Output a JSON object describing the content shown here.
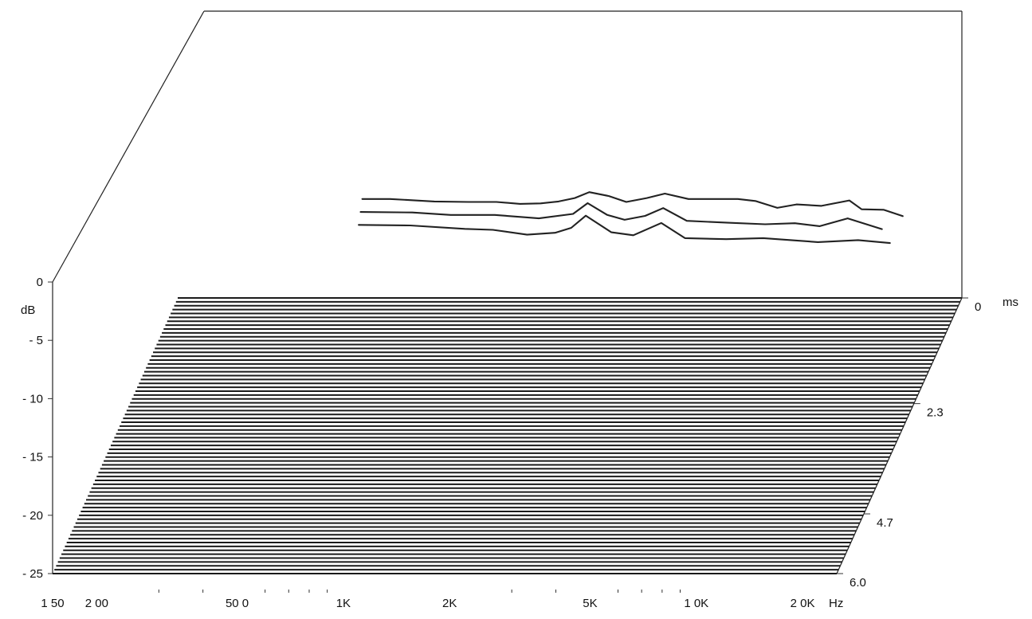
{
  "chart_data": {
    "type": "waterfall",
    "xlabel": "Hz",
    "x_scale": "log",
    "xlim": [
      150,
      30000
    ],
    "x_tick_labels": [
      {
        "value": 150,
        "label": "1 50"
      },
      {
        "value": 200,
        "label": "2 00"
      },
      {
        "value": 500,
        "label": "50 0"
      },
      {
        "value": 1000,
        "label": "1K"
      },
      {
        "value": 2000,
        "label": "2K"
      },
      {
        "value": 5000,
        "label": "5K"
      },
      {
        "value": 10000,
        "label": "1 0K"
      },
      {
        "value": 20000,
        "label": "2 0K"
      }
    ],
    "ylabel": "dB",
    "ylim": [
      -25,
      0
    ],
    "y_tick_labels": [
      {
        "value": 0,
        "label": "0"
      },
      {
        "value": -5,
        "label": "- 5"
      },
      {
        "value": -10,
        "label": "- 10"
      },
      {
        "value": -15,
        "label": "- 15"
      },
      {
        "value": -20,
        "label": "- 20"
      },
      {
        "value": -25,
        "label": "- 25"
      }
    ],
    "zlabel": "ms",
    "zlim": [
      0,
      6.0
    ],
    "z_tick_labels": [
      {
        "value": 0,
        "label": "0"
      },
      {
        "value": 2.3,
        "label": "2.3"
      },
      {
        "value": 4.7,
        "label": "4.7"
      },
      {
        "value": 6.0,
        "label": "6.0"
      }
    ],
    "slice_count": 72,
    "slices": [
      {
        "time_ms": 0.0,
        "response": [
          [
            500,
            -4.8
          ],
          [
            600,
            -4.8
          ],
          [
            800,
            -5.3
          ],
          [
            1000,
            -5.4
          ],
          [
            1200,
            -5.4
          ],
          [
            1400,
            -5.8
          ],
          [
            1600,
            -5.7
          ],
          [
            1800,
            -5.3
          ],
          [
            2000,
            -4.6
          ],
          [
            2200,
            -3.4
          ],
          [
            2500,
            -4.2
          ],
          [
            2800,
            -5.4
          ],
          [
            3200,
            -4.6
          ],
          [
            3600,
            -3.7
          ],
          [
            4200,
            -4.8
          ],
          [
            5000,
            -4.8
          ],
          [
            5800,
            -4.8
          ],
          [
            6500,
            -5.2
          ],
          [
            7500,
            -6.6
          ],
          [
            8500,
            -5.9
          ],
          [
            10000,
            -6.2
          ],
          [
            12000,
            -5.1
          ],
          [
            13000,
            -6.9
          ],
          [
            15000,
            -7.0
          ],
          [
            17000,
            -8.3
          ]
        ]
      },
      {
        "time_ms": 0.08,
        "response": [
          [
            500,
            -6.7
          ],
          [
            700,
            -6.8
          ],
          [
            900,
            -7.3
          ],
          [
            1200,
            -7.3
          ],
          [
            1600,
            -8.0
          ],
          [
            2000,
            -7.1
          ],
          [
            2200,
            -4.9
          ],
          [
            2500,
            -7.3
          ],
          [
            2800,
            -8.3
          ],
          [
            3200,
            -7.5
          ],
          [
            3600,
            -5.9
          ],
          [
            4200,
            -8.5
          ],
          [
            5500,
            -8.9
          ],
          [
            7000,
            -9.2
          ],
          [
            8500,
            -9.0
          ],
          [
            10000,
            -9.6
          ],
          [
            12000,
            -8.0
          ],
          [
            15000,
            -10.2
          ]
        ]
      },
      {
        "time_ms": 0.17,
        "response": [
          [
            500,
            -8.5
          ],
          [
            700,
            -8.6
          ],
          [
            1000,
            -9.3
          ],
          [
            1200,
            -9.5
          ],
          [
            1500,
            -10.5
          ],
          [
            1800,
            -10.1
          ],
          [
            2000,
            -9.1
          ],
          [
            2200,
            -6.6
          ],
          [
            2600,
            -10.0
          ],
          [
            3000,
            -10.6
          ],
          [
            3600,
            -8.1
          ],
          [
            4200,
            -11.2
          ],
          [
            5500,
            -11.4
          ],
          [
            7000,
            -11.2
          ],
          [
            10000,
            -12.0
          ],
          [
            13000,
            -11.6
          ],
          [
            16000,
            -12.2
          ]
        ]
      }
    ]
  }
}
